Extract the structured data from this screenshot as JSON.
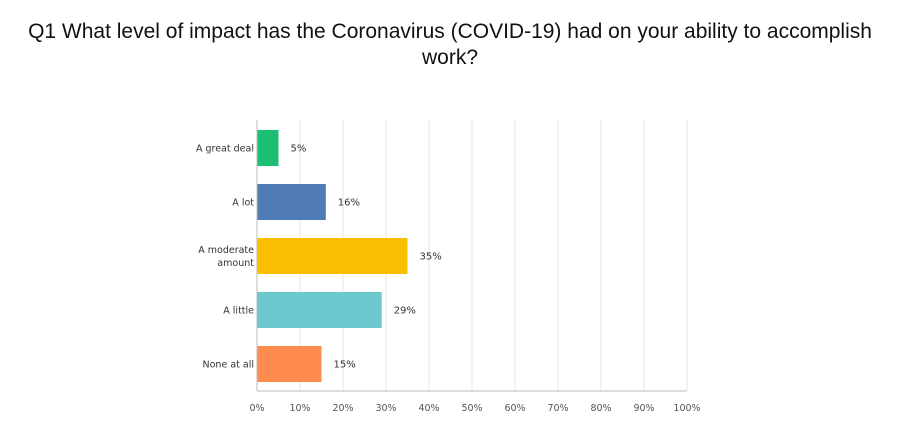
{
  "chart_data": {
    "type": "bar",
    "orientation": "horizontal",
    "title": "Q1 What level of impact has the Coronavirus (COVID-19) had on your ability to accomplish work?",
    "categories": [
      [
        "A great deal"
      ],
      [
        "A lot"
      ],
      [
        "A moderate",
        "amount"
      ],
      [
        "A little"
      ],
      [
        "None at all"
      ]
    ],
    "values": [
      5,
      16,
      35,
      29,
      15
    ],
    "value_labels": [
      "5%",
      "16%",
      "35%",
      "29%",
      "15%"
    ],
    "colors": [
      "#1cbe74",
      "#507cb6",
      "#f9be00",
      "#6bc8cd",
      "#ff8b4f"
    ],
    "xlim": [
      0,
      100
    ],
    "x_ticks": [
      "0%",
      "10%",
      "20%",
      "30%",
      "40%",
      "50%",
      "60%",
      "70%",
      "80%",
      "90%",
      "100%"
    ],
    "grid": true
  }
}
